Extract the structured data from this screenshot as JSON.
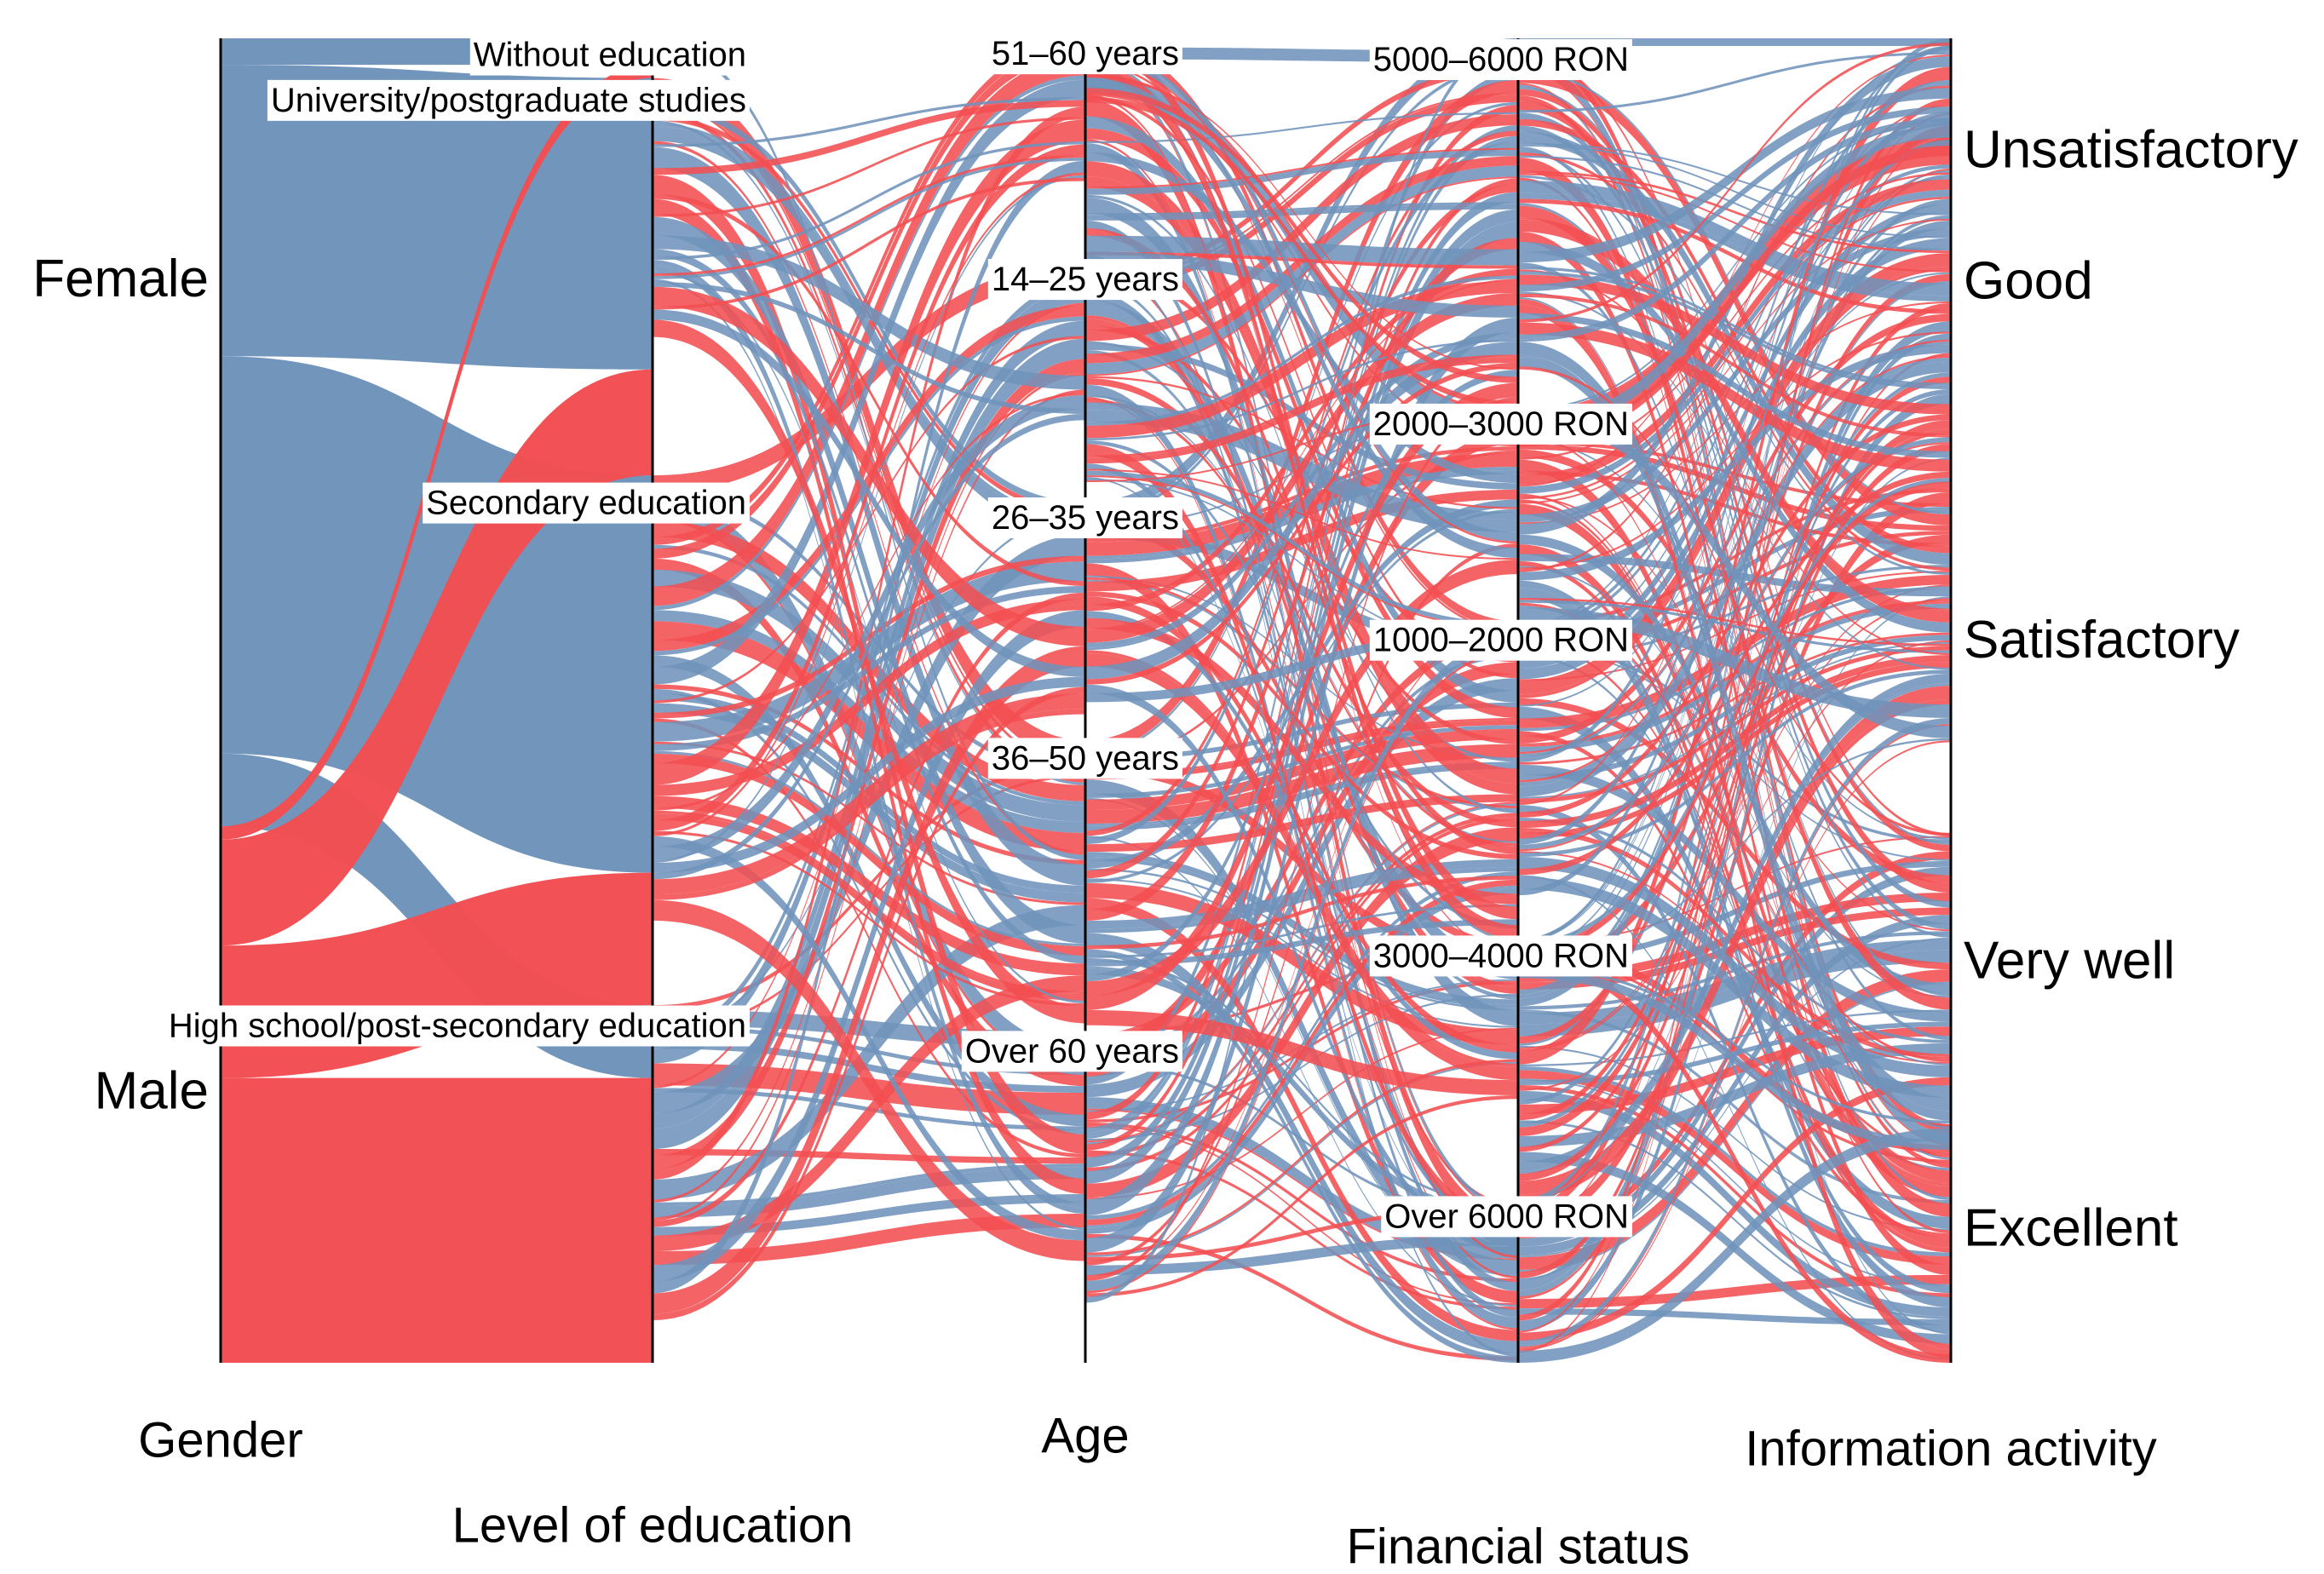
{
  "chart_data": {
    "type": "parallel-sets",
    "colors": {
      "Female": "#6f93bb",
      "Male": "#f24f52"
    },
    "axes": [
      {
        "title": "Gender",
        "categories": [
          "Female",
          "Male"
        ]
      },
      {
        "title": "Level of education",
        "categories": [
          "Without education",
          "University/postgraduate studies",
          "Secondary education",
          "High school/post-secondary education"
        ]
      },
      {
        "title": "Age",
        "categories": [
          "51–60 years",
          "14–25 years",
          "26–35 years",
          "36–50 years",
          "Over 60 years"
        ]
      },
      {
        "title": "Financial status",
        "categories": [
          "5000–6000 RON",
          "2000–3000 RON",
          "1000–2000 RON",
          "3000–4000 RON",
          "Over 6000 RON"
        ]
      },
      {
        "title": "Information activity",
        "categories": [
          "Unsatisfactory",
          "Good",
          "Satisfactory",
          "Very well",
          "Excellent"
        ]
      }
    ],
    "category_shares": {
      "Gender": [
        0.595,
        0.405
      ],
      "Level of education": [
        0.03,
        0.3,
        0.4,
        0.27
      ],
      "Age": [
        0.17,
        0.18,
        0.18,
        0.22,
        0.25
      ],
      "Financial status": [
        0.28,
        0.16,
        0.24,
        0.2,
        0.12
      ],
      "Information activity": [
        0.06,
        0.28,
        0.26,
        0.22,
        0.18
      ]
    },
    "gender_by_education": {
      "Female": [
        0.02,
        0.22,
        0.3,
        0.055
      ],
      "Male": [
        0.01,
        0.08,
        0.1,
        0.215
      ]
    }
  }
}
